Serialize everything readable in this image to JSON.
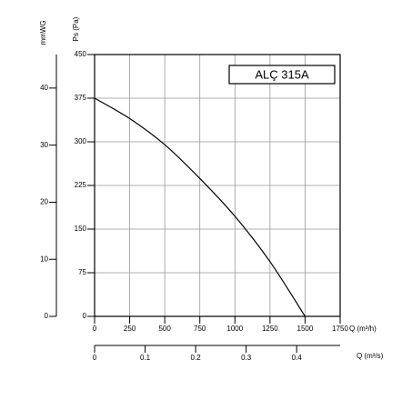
{
  "chart_data": {
    "type": "line",
    "series": [
      {
        "name": "ALÇ 315A",
        "color": "#000000",
        "x": [
          0,
          250,
          500,
          750,
          1000,
          1250,
          1500
        ],
        "values": [
          375,
          340,
          295,
          237,
          172,
          94,
          0
        ]
      }
    ],
    "xlabel": "Q (m³/h)",
    "ylabel": "Ps (Pa)",
    "y2label": "mmWG",
    "x2label": "Q (m³/s)",
    "xlim": [
      0,
      1750
    ],
    "xticks": [
      0,
      250,
      500,
      750,
      1000,
      1250,
      1500,
      1750
    ],
    "ylim": [
      0,
      450
    ],
    "yticks": [
      0,
      75,
      150,
      225,
      300,
      375,
      450
    ],
    "y2lim": [
      0,
      45.87
    ],
    "y2ticks": [
      0,
      10,
      20,
      30,
      40
    ],
    "x2lim": [
      0,
      0.4861
    ],
    "x2ticks": [
      0,
      0.1,
      0.2,
      0.3,
      0.4
    ],
    "grid": true,
    "legend": "upper right"
  }
}
